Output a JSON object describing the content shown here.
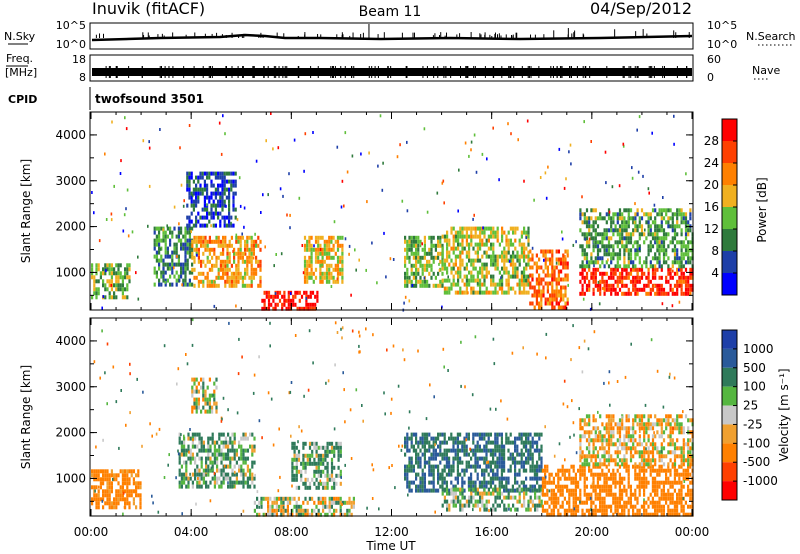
{
  "header": {
    "station": "Inuvik (fitACF)",
    "beam": "Beam 11",
    "date": "04/Sep/2012"
  },
  "status_panels": {
    "nsky": {
      "label": "N.Sky",
      "left_ticks": [
        "10^5",
        "10^0"
      ],
      "right_ticks": [
        "10^5",
        "10^0"
      ],
      "right_label": "N.Search"
    },
    "freq": {
      "label_line1": "Freq.",
      "label_line2": "[MHz]",
      "left_ticks": [
        "18",
        "8"
      ],
      "right_ticks": [
        "60",
        "0"
      ],
      "right_label": "Nave"
    },
    "cpid": {
      "label": "CPID",
      "value": "twofsound 3501"
    }
  },
  "x_axis": {
    "label": "Time UT",
    "ticks": [
      "00:00",
      "04:00",
      "08:00",
      "12:00",
      "16:00",
      "20:00",
      "00:00"
    ]
  },
  "y_axis": {
    "label": "Slant Range [km]",
    "ticks": [
      "1000",
      "2000",
      "3000",
      "4000"
    ]
  },
  "power_colorbar": {
    "label": "Power [dB]",
    "ticks": [
      "4",
      "8",
      "12",
      "16",
      "20",
      "24",
      "28"
    ],
    "colors": [
      "#0000ff",
      "#1e3fa8",
      "#2f7a3c",
      "#5fbf3a",
      "#f0b020",
      "#ff8000",
      "#ff4000",
      "#ff0000"
    ]
  },
  "velocity_colorbar": {
    "label": "Velocity [m s⁻¹]",
    "ticks": [
      "1000",
      "500",
      "100",
      "25",
      "-25",
      "-100",
      "-500",
      "-1000"
    ],
    "colors": [
      "#1e3fa8",
      "#2a5a9a",
      "#2f7a5a",
      "#55b640",
      "#c8c8c8",
      "#f0a030",
      "#ff8000",
      "#ff4000",
      "#ff0000"
    ]
  },
  "chart_data": {
    "type": "heatmap",
    "title": "Inuvik (fitACF) Beam 11 04/Sep/2012",
    "xlabel": "Time UT",
    "ylabel": "Slant Range [km]",
    "xlim_hours": [
      0,
      24
    ],
    "ylim_km": [
      180,
      4500
    ],
    "panels": [
      {
        "name": "Power",
        "units": "dB",
        "colorbar_range": [
          0,
          32
        ],
        "regions": [
          {
            "t0": 0.0,
            "t1": 1.5,
            "r0": 500,
            "r1": 1200,
            "value": 14
          },
          {
            "t0": 2.5,
            "t1": 4.0,
            "r0": 700,
            "r1": 2000,
            "value": 10
          },
          {
            "t0": 3.8,
            "t1": 5.8,
            "r0": 2000,
            "r1": 3200,
            "value": 6
          },
          {
            "t0": 4.0,
            "t1": 6.8,
            "r0": 700,
            "r1": 1800,
            "value": 20
          },
          {
            "t0": 6.8,
            "t1": 9.0,
            "r0": 180,
            "r1": 600,
            "value": 30
          },
          {
            "t0": 8.5,
            "t1": 10.0,
            "r0": 800,
            "r1": 1800,
            "value": 18
          },
          {
            "t0": 12.5,
            "t1": 14.0,
            "r0": 700,
            "r1": 1800,
            "value": 14
          },
          {
            "t0": 14.0,
            "t1": 17.5,
            "r0": 600,
            "r1": 2000,
            "value": 16
          },
          {
            "t0": 17.5,
            "t1": 19.0,
            "r0": 200,
            "r1": 1500,
            "value": 24
          },
          {
            "t0": 19.5,
            "t1": 24.0,
            "r0": 500,
            "r1": 1100,
            "value": 28
          },
          {
            "t0": 19.5,
            "t1": 24.0,
            "r0": 1100,
            "r1": 2400,
            "value": 12
          }
        ]
      },
      {
        "name": "Velocity",
        "units": "m s^-1",
        "colorbar_range": [
          -1000,
          1000
        ],
        "regions": [
          {
            "t0": 0.0,
            "t1": 2.0,
            "r0": 400,
            "r1": 1200,
            "value": -200
          },
          {
            "t0": 3.5,
            "t1": 6.5,
            "r0": 800,
            "r1": 2000,
            "value": 100
          },
          {
            "t0": 4.0,
            "t1": 5.0,
            "r0": 2500,
            "r1": 3200,
            "value": 0
          },
          {
            "t0": 6.5,
            "t1": 10.5,
            "r0": 180,
            "r1": 600,
            "value": 0
          },
          {
            "t0": 8.0,
            "t1": 10.0,
            "r0": 800,
            "r1": 1800,
            "value": 100
          },
          {
            "t0": 12.5,
            "t1": 18.0,
            "r0": 700,
            "r1": 2000,
            "value": 500
          },
          {
            "t0": 14.0,
            "t1": 18.0,
            "r0": 300,
            "r1": 800,
            "value": 60
          },
          {
            "t0": 18.0,
            "t1": 24.0,
            "r0": 180,
            "r1": 1300,
            "value": -300
          },
          {
            "t0": 19.5,
            "t1": 24.0,
            "r0": 1300,
            "r1": 2400,
            "value": -60
          }
        ]
      }
    ]
  }
}
